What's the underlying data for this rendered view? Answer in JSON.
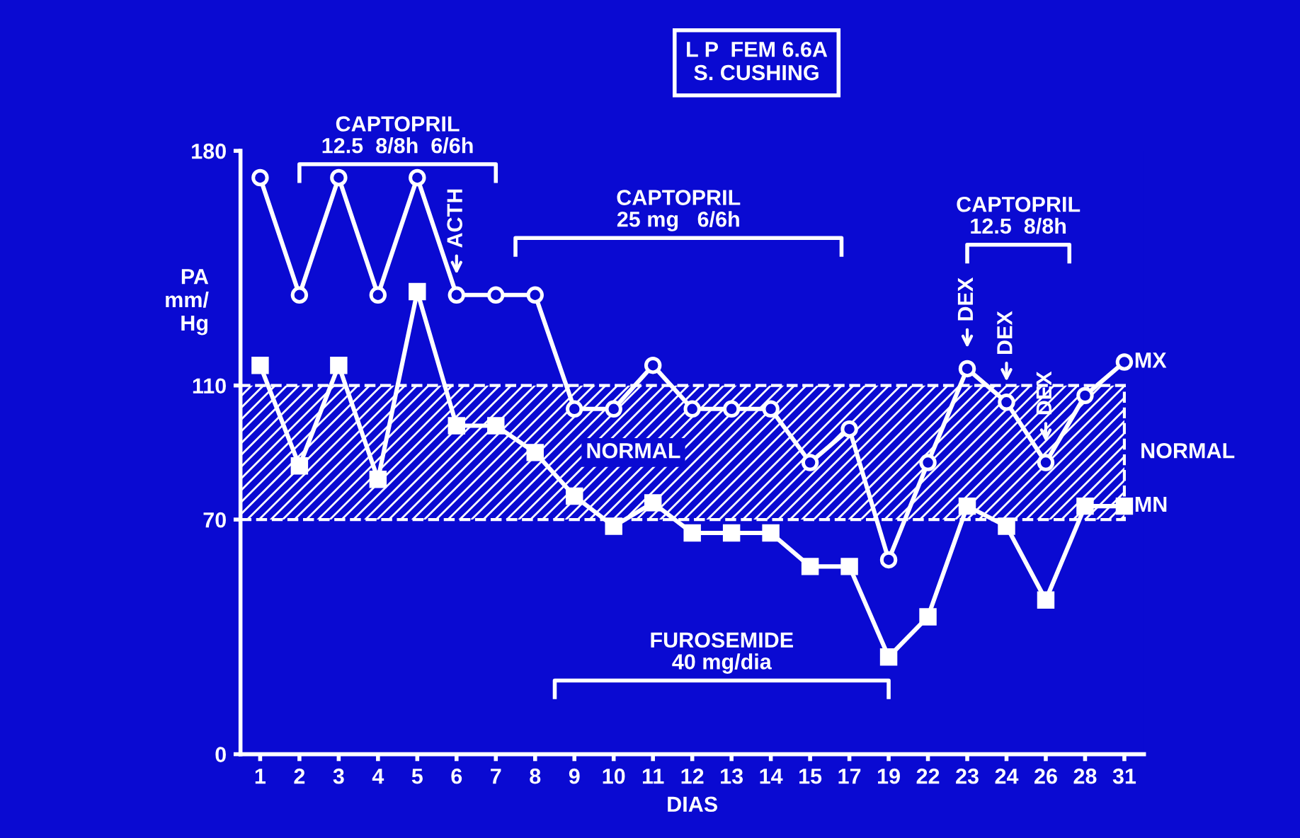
{
  "chart_data": {
    "type": "line",
    "title": "L P  FEM 6.6A\nS. CUSHING",
    "xlabel": "DIAS",
    "ylabel": "PA\nmm/\nHg",
    "categories": [
      "1",
      "2",
      "3",
      "4",
      "5",
      "6",
      "7",
      "8",
      "9",
      "10",
      "11",
      "12",
      "13",
      "14",
      "15",
      "17",
      "19",
      "22",
      "23",
      "24",
      "26",
      "28",
      "31"
    ],
    "series": [
      {
        "name": "MX",
        "color": "#ffffff",
        "marker": "circle",
        "values": [
          172,
          137,
          172,
          137,
          172,
          137,
          137,
          137,
          103,
          103,
          116,
          103,
          103,
          103,
          87,
          97,
          58,
          87,
          115,
          105,
          87,
          107,
          117
        ]
      },
      {
        "name": "MN",
        "color": "#ffffff",
        "marker": "square",
        "values": [
          116,
          86,
          116,
          82,
          138,
          98,
          98,
          90,
          77,
          68,
          75,
          66,
          66,
          66,
          56,
          56,
          29,
          41,
          74,
          68,
          46,
          74,
          74
        ]
      }
    ],
    "ylim": [
      0,
      180
    ],
    "yticks": [
      0,
      70,
      110,
      180
    ],
    "bands": [
      {
        "axis": "y",
        "from": 70,
        "to": 110,
        "label": "NORMAL",
        "color": "#ffffff"
      }
    ],
    "annotations": [
      "CAPTOPRIL\n12.5  8/8h  6/6h",
      "CAPTOPRIL\n25 mg   6/6h",
      "CAPTOPRIL\n12.5  8/8h",
      "FUROSEMIDE\n40 mg/dia",
      "NORMAL",
      {
        "text": "ACTH",
        "x": "6"
      },
      {
        "text": "DEX",
        "x": "23"
      },
      {
        "text": "DEX",
        "x": "24"
      },
      {
        "text": "DEX",
        "x": "26"
      }
    ],
    "grid": false,
    "legend": false,
    "line_style": "solid"
  }
}
